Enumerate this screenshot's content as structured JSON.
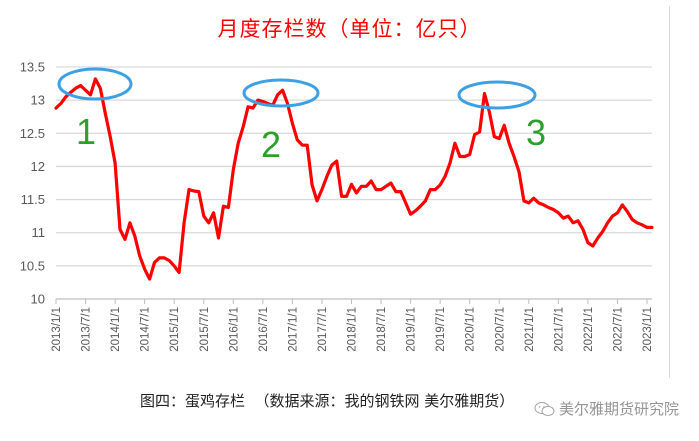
{
  "chart_data": {
    "type": "line",
    "title": "月度存栏数（单位：亿只）",
    "xlabel": "",
    "ylabel": "",
    "ylim": [
      10,
      13.5
    ],
    "yticks": [
      10,
      10.5,
      11,
      11.5,
      12,
      12.5,
      13,
      13.5
    ],
    "ytick_labels": [
      "10",
      "10.5",
      "11",
      "11.5",
      "12",
      "12.5",
      "13",
      "13.5"
    ],
    "xtick_labels": [
      "2013/1/1",
      "2013/7/1",
      "2014/1/1",
      "2014/7/1",
      "2015/1/1",
      "2015/7/1",
      "2016/1/1",
      "2016/7/1",
      "2017/1/1",
      "2017/7/1",
      "2018/1/1",
      "2018/7/1",
      "2019/1/1",
      "2019/7/1",
      "2020/1/1",
      "2020/7/1",
      "2021/1/1",
      "2021/7/1",
      "2022/1/1",
      "2022/7/1",
      "2023/1/1"
    ],
    "grid": true,
    "legend": "none",
    "x_start": "2013/1",
    "x_interval": "monthly",
    "series": [
      {
        "name": "月度存栏数",
        "color": "#ff0000",
        "values": [
          12.88,
          12.95,
          13.05,
          13.12,
          13.18,
          13.22,
          13.15,
          13.08,
          13.32,
          13.18,
          12.8,
          12.45,
          12.05,
          11.05,
          10.9,
          11.15,
          10.95,
          10.65,
          10.45,
          10.3,
          10.55,
          10.62,
          10.62,
          10.58,
          10.5,
          10.4,
          11.15,
          11.65,
          11.63,
          11.62,
          11.25,
          11.15,
          11.3,
          10.92,
          11.4,
          11.38,
          11.95,
          12.35,
          12.6,
          12.9,
          12.88,
          13.0,
          12.98,
          12.95,
          12.92,
          13.08,
          13.15,
          12.95,
          12.65,
          12.4,
          12.32,
          12.32,
          11.72,
          11.48,
          11.65,
          11.85,
          12.02,
          12.08,
          11.55,
          11.55,
          11.73,
          11.6,
          11.7,
          11.7,
          11.78,
          11.65,
          11.65,
          11.7,
          11.75,
          11.62,
          11.62,
          11.45,
          11.28,
          11.33,
          11.4,
          11.48,
          11.65,
          11.65,
          11.72,
          11.85,
          12.05,
          12.35,
          12.15,
          12.15,
          12.18,
          12.48,
          12.52,
          13.1,
          12.82,
          12.45,
          12.42,
          12.62,
          12.35,
          12.15,
          11.92,
          11.48,
          11.45,
          11.52,
          11.45,
          11.42,
          11.38,
          11.35,
          11.3,
          11.22,
          11.25,
          11.15,
          11.18,
          11.05,
          10.85,
          10.8,
          10.92,
          11.02,
          11.15,
          11.25,
          11.3,
          11.42,
          11.32,
          11.2,
          11.15,
          11.12,
          11.08,
          11.08
        ]
      }
    ],
    "annotations": [
      {
        "label": "1",
        "type": "ellipse",
        "color": "#3ea0e4",
        "label_color": "#2ca02c",
        "near": "2013/9 peak"
      },
      {
        "label": "2",
        "type": "ellipse",
        "color": "#3ea0e4",
        "label_color": "#2ca02c",
        "near": "2016/11 peak"
      },
      {
        "label": "3",
        "type": "ellipse",
        "color": "#3ea0e4",
        "label_color": "#2ca02c",
        "near": "2020/4 peak"
      }
    ]
  },
  "caption": "图四：蛋鸡存栏  （数据来源：我的钢铁网 美尔雅期货）",
  "watermark": "美尔雅期货研究院",
  "colors": {
    "line": "#ff0000",
    "title": "#ff0000",
    "ellipse": "#3ea0e4",
    "annotation_number": "#2ca02c",
    "grid": "#d9d9d9",
    "tick_text": "#595959"
  }
}
